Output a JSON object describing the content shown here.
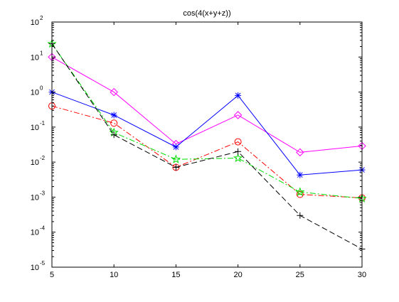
{
  "chart_data": {
    "type": "line",
    "title": "cos(4(x+y+z))",
    "xlabel": "",
    "ylabel": "",
    "x": [
      5,
      10,
      15,
      20,
      25,
      30
    ],
    "xlim": [
      5,
      30
    ],
    "ylim": [
      1e-05,
      100
    ],
    "yscale": "log",
    "grid": false,
    "x_ticks": [
      "5",
      "10",
      "15",
      "20",
      "25",
      "30"
    ],
    "y_ticks": [
      {
        "base": "10",
        "exp": "-5"
      },
      {
        "base": "10",
        "exp": "-4"
      },
      {
        "base": "10",
        "exp": "-3"
      },
      {
        "base": "10",
        "exp": "-2"
      },
      {
        "base": "10",
        "exp": "-1"
      },
      {
        "base": "10",
        "exp": "0"
      },
      {
        "base": "10",
        "exp": "1"
      },
      {
        "base": "10",
        "exp": "2"
      }
    ],
    "series": [
      {
        "color": "#ff00ff",
        "marker": "diamond",
        "dash": "solid",
        "values": [
          10,
          1.0,
          0.033,
          0.22,
          0.019,
          0.029
        ]
      },
      {
        "color": "#0000ff",
        "marker": "star",
        "dash": "solid",
        "values": [
          1.0,
          0.22,
          0.027,
          0.8,
          0.0043,
          0.006
        ]
      },
      {
        "color": "#ff0000",
        "marker": "circle",
        "dash": "dashdot",
        "values": [
          0.4,
          0.13,
          0.0071,
          0.038,
          0.0012,
          0.00095
        ]
      },
      {
        "color": "#00dd00",
        "marker": "pentagram",
        "dash": "dashdot",
        "values": [
          24,
          0.07,
          0.012,
          0.013,
          0.0014,
          0.00092
        ]
      },
      {
        "color": "#000000",
        "marker": "plus",
        "dash": "dashed",
        "values": [
          24,
          0.06,
          0.0071,
          0.02,
          0.0003,
          3.3e-05
        ]
      }
    ]
  }
}
